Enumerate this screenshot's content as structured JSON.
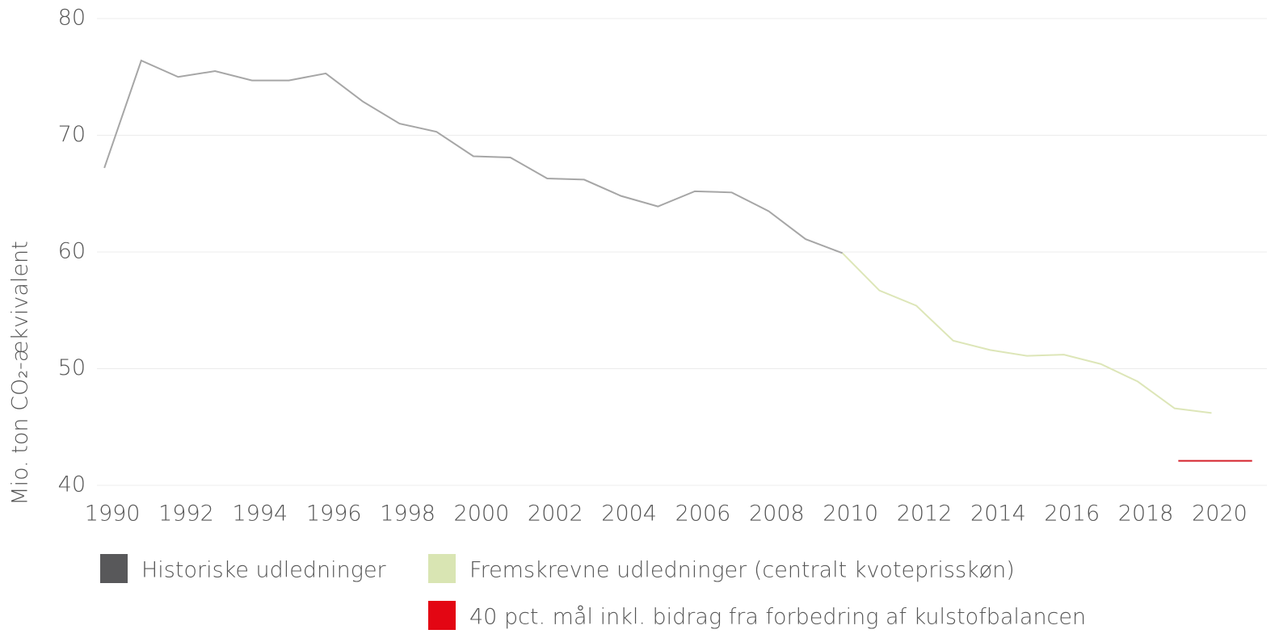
{
  "chart_data": {
    "type": "line",
    "y_label": "Mio. ton CO₂-ækvivalent",
    "xlim": [
      1989.8,
      2021.5
    ],
    "xticks": [
      1990,
      1992,
      1994,
      1996,
      1998,
      2000,
      2002,
      2004,
      2006,
      2008,
      2010,
      2012,
      2014,
      2016,
      2018,
      2020
    ],
    "ylim": [
      40,
      80
    ],
    "yticks": [
      40,
      50,
      60,
      70,
      80
    ],
    "grid": true,
    "series": [
      {
        "name": "Historiske udledninger",
        "color": "#a6a6a6",
        "legend_color": "#58585a",
        "x": [
          1990,
          1991,
          1992,
          1993,
          1994,
          1995,
          1996,
          1997,
          1998,
          1999,
          2000,
          2001,
          2002,
          2003,
          2004,
          2005,
          2006,
          2007,
          2008,
          2009,
          2010
        ],
        "values": [
          67.2,
          76.4,
          75.0,
          75.5,
          74.7,
          74.7,
          75.3,
          72.9,
          71.0,
          70.3,
          68.2,
          68.1,
          66.3,
          66.2,
          64.8,
          63.9,
          65.2,
          65.1,
          63.5,
          61.1,
          59.9
        ]
      },
      {
        "name": "Fremskrevne udledninger (centralt kvoteprisskøn)",
        "color": "#dde6b8",
        "legend_color": "#d9e5b3",
        "x": [
          2010,
          2011,
          2012,
          2013,
          2014,
          2015,
          2016,
          2017,
          2018,
          2019,
          2020
        ],
        "values": [
          59.9,
          56.7,
          55.4,
          52.4,
          51.6,
          51.1,
          51.2,
          50.4,
          48.9,
          46.6,
          46.2
        ]
      },
      {
        "name": "40 pct. mål inkl. bidrag fra forbedring af kulstofbalancen",
        "color": "#d4202a",
        "legend_color": "#e30613",
        "x": [
          2019.1,
          2021.1
        ],
        "values": [
          42.1,
          42.1
        ]
      }
    ]
  }
}
